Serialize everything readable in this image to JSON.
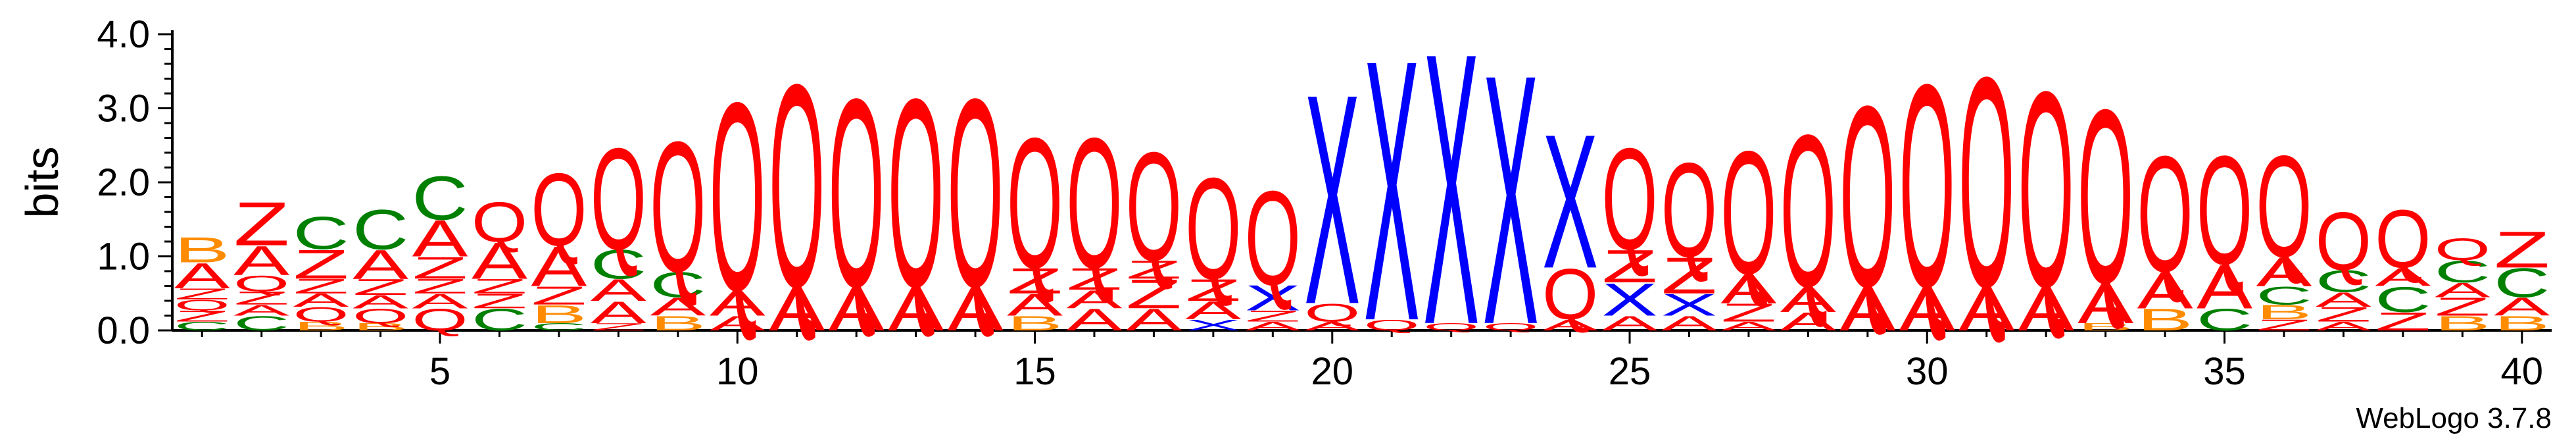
{
  "chart_data": {
    "type": "sequence-logo",
    "ylabel": "bits",
    "ylim": [
      0,
      4.0
    ],
    "yticks": [
      "0.0",
      "1.0",
      "2.0",
      "3.0",
      "4.0"
    ],
    "xticks": [
      5,
      10,
      15,
      20,
      25,
      30,
      35,
      40
    ],
    "footer": "WebLogo 3.7.8",
    "colors": {
      "A": "#ff0000",
      "Q": "#ff0000",
      "Z": "#ff0000",
      "C": "#008000",
      "B": "#ff8c00",
      "X": "#0000ff"
    },
    "positions": [
      {
        "pos": 1,
        "letters": [
          [
            "C",
            0.12
          ],
          [
            "Z",
            0.15
          ],
          [
            "Q",
            0.15
          ],
          [
            "Z",
            0.15
          ],
          [
            "A",
            0.35
          ],
          [
            "B",
            0.35
          ]
        ]
      },
      {
        "pos": 2,
        "letters": [
          [
            "C",
            0.2
          ],
          [
            "A",
            0.15
          ],
          [
            "Z",
            0.18
          ],
          [
            "Q",
            0.22
          ],
          [
            "A",
            0.4
          ],
          [
            "Z",
            0.6
          ]
        ]
      },
      {
        "pos": 3,
        "letters": [
          [
            "B",
            0.12
          ],
          [
            "Q",
            0.2
          ],
          [
            "A",
            0.18
          ],
          [
            "Z",
            0.2
          ],
          [
            "Z",
            0.4
          ],
          [
            "C",
            0.45
          ]
        ]
      },
      {
        "pos": 4,
        "letters": [
          [
            "B",
            0.1
          ],
          [
            "Q",
            0.2
          ],
          [
            "A",
            0.18
          ],
          [
            "Z",
            0.22
          ],
          [
            "A",
            0.4
          ],
          [
            "C",
            0.55
          ]
        ]
      },
      {
        "pos": 5,
        "letters": [
          [
            "Q",
            0.3
          ],
          [
            "A",
            0.2
          ],
          [
            "Z",
            0.2
          ],
          [
            "Z",
            0.3
          ],
          [
            "A",
            0.5
          ],
          [
            "C",
            0.6
          ]
        ]
      },
      {
        "pos": 6,
        "letters": [
          [
            "C",
            0.3
          ],
          [
            "Z",
            0.2
          ],
          [
            "Z",
            0.2
          ],
          [
            "A",
            0.5
          ],
          [
            "Q",
            0.55
          ]
        ]
      },
      {
        "pos": 7,
        "letters": [
          [
            "C",
            0.1
          ],
          [
            "B",
            0.25
          ],
          [
            "Z",
            0.25
          ],
          [
            "A",
            0.55
          ],
          [
            "Q",
            1.0
          ]
        ]
      },
      {
        "pos": 8,
        "letters": [
          [
            "Z",
            0.1
          ],
          [
            "A",
            0.3
          ],
          [
            "A",
            0.3
          ],
          [
            "C",
            0.4
          ],
          [
            "Q",
            1.4
          ]
        ]
      },
      {
        "pos": 9,
        "letters": [
          [
            "B",
            0.2
          ],
          [
            "A",
            0.25
          ],
          [
            "C",
            0.35
          ],
          [
            "Q",
            1.8
          ]
        ]
      },
      {
        "pos": 10,
        "letters": [
          [
            "A",
            0.2
          ],
          [
            "A",
            0.35
          ],
          [
            "Q",
            2.6
          ]
        ]
      },
      {
        "pos": 11,
        "letters": [
          [
            "A",
            0.6
          ],
          [
            "Q",
            2.8
          ]
        ]
      },
      {
        "pos": 12,
        "letters": [
          [
            "A",
            0.6
          ],
          [
            "Q",
            2.6
          ]
        ]
      },
      {
        "pos": 13,
        "letters": [
          [
            "A",
            0.6
          ],
          [
            "Q",
            2.6
          ]
        ]
      },
      {
        "pos": 14,
        "letters": [
          [
            "A",
            0.6
          ],
          [
            "Q",
            2.6
          ]
        ]
      },
      {
        "pos": 15,
        "letters": [
          [
            "B",
            0.2
          ],
          [
            "A",
            0.3
          ],
          [
            "Z",
            0.35
          ],
          [
            "Q",
            1.8
          ]
        ]
      },
      {
        "pos": 16,
        "letters": [
          [
            "A",
            0.3
          ],
          [
            "A",
            0.25
          ],
          [
            "Z",
            0.3
          ],
          [
            "Q",
            1.8
          ]
        ]
      },
      {
        "pos": 17,
        "letters": [
          [
            "A",
            0.3
          ],
          [
            "Z",
            0.4
          ],
          [
            "Z",
            0.25
          ],
          [
            "Q",
            1.5
          ]
        ]
      },
      {
        "pos": 18,
        "letters": [
          [
            "X",
            0.15
          ],
          [
            "A",
            0.25
          ],
          [
            "Z",
            0.3
          ],
          [
            "Q",
            1.4
          ]
        ]
      },
      {
        "pos": 19,
        "letters": [
          [
            "A",
            0.12
          ],
          [
            "Z",
            0.15
          ],
          [
            "X",
            0.35
          ],
          [
            "Q",
            1.3
          ]
        ]
      },
      {
        "pos": 20,
        "letters": [
          [
            "A",
            0.12
          ],
          [
            "Q",
            0.25
          ],
          [
            "X",
            2.9
          ]
        ]
      },
      {
        "pos": 21,
        "letters": [
          [
            "Q",
            0.15
          ],
          [
            "X",
            3.6
          ]
        ]
      },
      {
        "pos": 22,
        "letters": [
          [
            "Q",
            0.1
          ],
          [
            "X",
            3.75
          ]
        ]
      },
      {
        "pos": 23,
        "letters": [
          [
            "Q",
            0.1
          ],
          [
            "X",
            3.45
          ]
        ]
      },
      {
        "pos": 24,
        "letters": [
          [
            "A",
            0.15
          ],
          [
            "Q",
            0.7
          ],
          [
            "X",
            1.85
          ]
        ]
      },
      {
        "pos": 25,
        "letters": [
          [
            "A",
            0.2
          ],
          [
            "X",
            0.45
          ],
          [
            "Z",
            0.45
          ],
          [
            "Q",
            1.4
          ]
        ]
      },
      {
        "pos": 26,
        "letters": [
          [
            "A",
            0.2
          ],
          [
            "X",
            0.3
          ],
          [
            "Z",
            0.5
          ],
          [
            "Q",
            1.3
          ]
        ]
      },
      {
        "pos": 27,
        "letters": [
          [
            "A",
            0.12
          ],
          [
            "Z",
            0.25
          ],
          [
            "A",
            0.4
          ],
          [
            "Q",
            1.7
          ]
        ]
      },
      {
        "pos": 28,
        "letters": [
          [
            "A",
            0.25
          ],
          [
            "A",
            0.35
          ],
          [
            "Q",
            2.1
          ]
        ]
      },
      {
        "pos": 29,
        "letters": [
          [
            "A",
            0.6
          ],
          [
            "Q",
            2.5
          ]
        ]
      },
      {
        "pos": 30,
        "letters": [
          [
            "A",
            0.6
          ],
          [
            "Q",
            2.8
          ]
        ]
      },
      {
        "pos": 31,
        "letters": [
          [
            "A",
            0.6
          ],
          [
            "Q",
            2.9
          ]
        ]
      },
      {
        "pos": 32,
        "letters": [
          [
            "A",
            0.6
          ],
          [
            "Q",
            2.7
          ]
        ]
      },
      {
        "pos": 33,
        "letters": [
          [
            "B",
            0.1
          ],
          [
            "A",
            0.55
          ],
          [
            "Q",
            2.4
          ]
        ]
      },
      {
        "pos": 34,
        "letters": [
          [
            "B",
            0.3
          ],
          [
            "A",
            0.5
          ],
          [
            "Q",
            1.6
          ]
        ]
      },
      {
        "pos": 35,
        "letters": [
          [
            "C",
            0.3
          ],
          [
            "A",
            0.6
          ],
          [
            "Q",
            1.5
          ]
        ]
      },
      {
        "pos": 36,
        "letters": [
          [
            "Z",
            0.15
          ],
          [
            "B",
            0.2
          ],
          [
            "C",
            0.25
          ],
          [
            "A",
            0.4
          ],
          [
            "Q",
            1.4
          ]
        ]
      },
      {
        "pos": 37,
        "letters": [
          [
            "A",
            0.12
          ],
          [
            "Z",
            0.2
          ],
          [
            "A",
            0.2
          ],
          [
            "C",
            0.3
          ],
          [
            "Q",
            0.8
          ]
        ]
      },
      {
        "pos": 38,
        "letters": [
          [
            "Z",
            0.25
          ],
          [
            "C",
            0.35
          ],
          [
            "A",
            0.25
          ],
          [
            "Q",
            0.8
          ]
        ]
      },
      {
        "pos": 39,
        "letters": [
          [
            "B",
            0.2
          ],
          [
            "Z",
            0.25
          ],
          [
            "A",
            0.2
          ],
          [
            "C",
            0.3
          ],
          [
            "Q",
            0.3
          ]
        ]
      },
      {
        "pos": 40,
        "letters": [
          [
            "B",
            0.2
          ],
          [
            "A",
            0.25
          ],
          [
            "C",
            0.4
          ],
          [
            "Z",
            0.5
          ]
        ]
      }
    ]
  }
}
